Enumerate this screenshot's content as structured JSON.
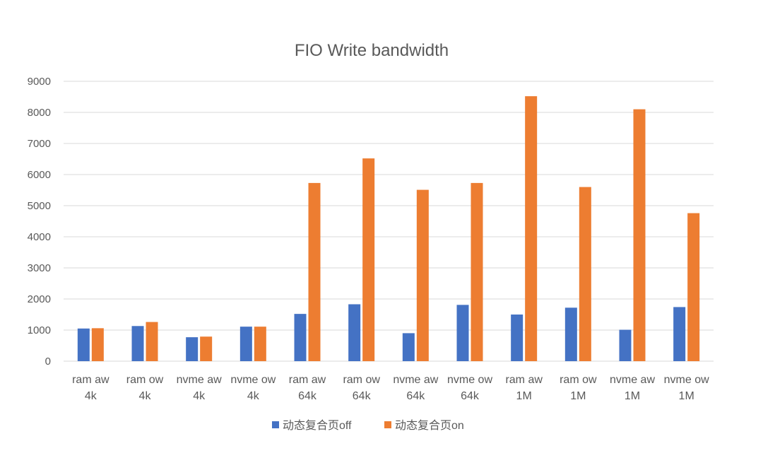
{
  "chart_data": {
    "type": "bar",
    "title": "FIO Write bandwidth",
    "xlabel": "",
    "ylabel": "",
    "ylim": [
      0,
      9000
    ],
    "yticks": [
      0,
      1000,
      2000,
      3000,
      4000,
      5000,
      6000,
      7000,
      8000,
      9000
    ],
    "grid": true,
    "legend_position": "bottom",
    "categories": [
      [
        "ram aw",
        "4k"
      ],
      [
        "ram ow",
        "4k"
      ],
      [
        "nvme aw",
        "4k"
      ],
      [
        "nvme ow",
        "4k"
      ],
      [
        "ram aw",
        "64k"
      ],
      [
        "ram ow",
        "64k"
      ],
      [
        "nvme aw",
        "64k"
      ],
      [
        "nvme ow",
        "64k"
      ],
      [
        "ram aw",
        "1M"
      ],
      [
        "ram ow",
        "1M"
      ],
      [
        "nvme aw",
        "1M"
      ],
      [
        "nvme ow",
        "1M"
      ]
    ],
    "series": [
      {
        "name": "动态复合页off",
        "color": "#4472c4",
        "values": [
          1050,
          1130,
          770,
          1110,
          1520,
          1830,
          900,
          1810,
          1500,
          1720,
          1010,
          1740
        ]
      },
      {
        "name": "动态复合页on",
        "color": "#ed7d31",
        "values": [
          1060,
          1260,
          790,
          1110,
          5730,
          6520,
          5510,
          5730,
          8520,
          5600,
          8100,
          4760
        ]
      }
    ]
  }
}
